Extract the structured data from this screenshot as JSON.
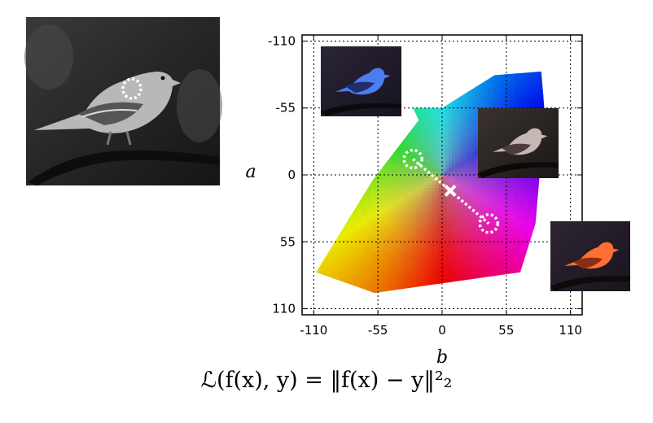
{
  "chart_data": {
    "type": "scatter",
    "title": "",
    "xlabel": "b",
    "ylabel": "a",
    "xlim": [
      -120,
      120
    ],
    "ylim": [
      115,
      -115
    ],
    "x_ticks": [
      "-110",
      "-55",
      "0",
      "55",
      "110"
    ],
    "y_ticks": [
      "-110",
      "-55",
      "0",
      "55",
      "110"
    ],
    "grid": true,
    "gamut": "ab color gamut (hue wheel region)",
    "points": [
      {
        "b": -25,
        "a": -13,
        "style": "dashed-circle"
      },
      {
        "b": 7,
        "a": 13,
        "style": "cross"
      },
      {
        "b": 40,
        "a": 40,
        "style": "dashed-circle"
      }
    ],
    "thumbnails": [
      "blue-bird",
      "gray-bird",
      "orange-bird"
    ]
  },
  "formula": "ℒ(f(x), y) = ‖f(x) − y‖²₂",
  "icons": {
    "input_photo": "grayscale-bird-photo",
    "point_marker": "dashed-circle-icon",
    "mean_marker": "cross-icon"
  },
  "colors": {
    "blue_tint": "#3a6fe8",
    "orange_tint": "#ff6a2a",
    "gray_tint": "#c7b9b6"
  }
}
